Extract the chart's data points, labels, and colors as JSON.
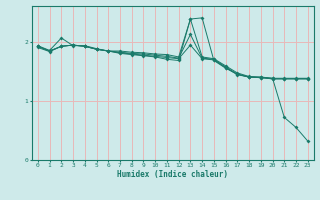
{
  "xlabel": "Humidex (Indice chaleur)",
  "ylabel": "",
  "background_color": "#ceeaea",
  "grid_color": "#e8b8b8",
  "line_color": "#1a7a6a",
  "marker": "D",
  "x_min": -0.5,
  "x_max": 23.5,
  "y_min": 0,
  "y_max": 2.6,
  "yticks": [
    0,
    1,
    2
  ],
  "xticks": [
    0,
    1,
    2,
    3,
    4,
    5,
    6,
    7,
    8,
    9,
    10,
    11,
    12,
    13,
    14,
    15,
    16,
    17,
    18,
    19,
    20,
    21,
    22,
    23
  ],
  "series": [
    [
      1.93,
      1.85,
      2.06,
      1.93,
      1.93,
      1.88,
      1.84,
      1.8,
      1.78,
      1.76,
      1.74,
      1.7,
      1.68,
      2.38,
      2.4,
      1.68,
      1.55,
      1.45,
      1.4,
      1.4,
      1.38,
      0.72,
      0.55,
      0.32
    ],
    [
      1.9,
      1.83,
      1.92,
      1.94,
      1.92,
      1.87,
      1.84,
      1.81,
      1.79,
      1.77,
      1.75,
      1.73,
      1.71,
      1.94,
      1.71,
      1.69,
      1.56,
      1.44,
      1.4,
      1.39,
      1.37,
      1.37,
      1.37,
      1.37
    ],
    [
      1.92,
      1.84,
      1.92,
      1.94,
      1.92,
      1.87,
      1.84,
      1.82,
      1.8,
      1.79,
      1.77,
      1.75,
      1.72,
      2.12,
      1.72,
      1.7,
      1.57,
      1.45,
      1.4,
      1.39,
      1.37,
      1.37,
      1.37,
      1.37
    ],
    [
      1.92,
      1.84,
      1.92,
      1.94,
      1.92,
      1.87,
      1.84,
      1.84,
      1.82,
      1.81,
      1.79,
      1.78,
      1.74,
      2.38,
      1.74,
      1.71,
      1.59,
      1.47,
      1.41,
      1.4,
      1.38,
      1.38,
      1.38,
      1.38
    ]
  ]
}
